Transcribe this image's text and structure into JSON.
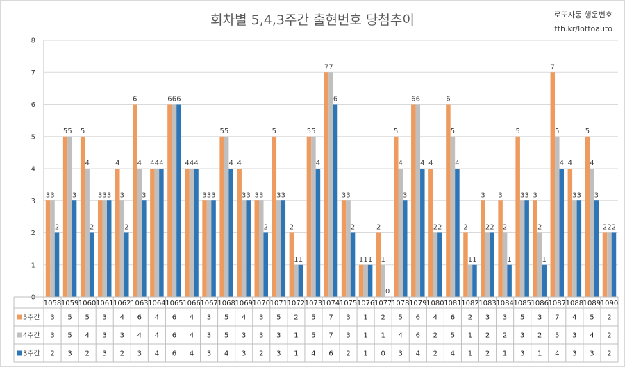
{
  "title": "회차별 5,4,3주간 출현번호 당첨추이",
  "watermark": {
    "line1": "로또자동 행운번호",
    "line2": "tth.kr/lottoauto"
  },
  "colors": {
    "s5": "#ED9B5E",
    "s4": "#BFBFBF",
    "s3": "#2E75B6",
    "grid": "#D9D9D9",
    "axis": "#BFBFBF"
  },
  "chart_data": {
    "type": "bar",
    "title": "회차별 5,4,3주간 출현번호 당첨추이",
    "ylim": [
      0,
      8
    ],
    "yticks": [
      0,
      1,
      2,
      3,
      4,
      5,
      6,
      7,
      8
    ],
    "grid": true,
    "legend": "data-table",
    "categories": [
      "1058",
      "1059",
      "1060",
      "1061",
      "1062",
      "1063",
      "1064",
      "1065",
      "1066",
      "1067",
      "1068",
      "1069",
      "1070",
      "1071",
      "1072",
      "1073",
      "1074",
      "1075",
      "1076",
      "1077",
      "1078",
      "1079",
      "1080",
      "1081",
      "1082",
      "1083",
      "1084",
      "1085",
      "1086",
      "1087",
      "1088",
      "1089",
      "1090"
    ],
    "series": [
      {
        "name": "5주간",
        "values": [
          3,
          5,
          5,
          3,
          4,
          6,
          4,
          6,
          4,
          3,
          5,
          4,
          3,
          5,
          2,
          5,
          7,
          3,
          1,
          2,
          5,
          6,
          4,
          6,
          2,
          3,
          3,
          5,
          3,
          7,
          4,
          5,
          2
        ]
      },
      {
        "name": "4주간",
        "values": [
          3,
          5,
          4,
          3,
          3,
          4,
          4,
          6,
          4,
          3,
          5,
          3,
          3,
          3,
          1,
          5,
          7,
          3,
          1,
          1,
          4,
          6,
          2,
          5,
          1,
          2,
          2,
          3,
          2,
          5,
          3,
          4,
          2
        ]
      },
      {
        "name": "3주간",
        "values": [
          2,
          3,
          2,
          3,
          2,
          3,
          4,
          6,
          4,
          3,
          4,
          3,
          2,
          3,
          1,
          4,
          6,
          2,
          1,
          0,
          3,
          4,
          2,
          4,
          1,
          2,
          1,
          3,
          1,
          4,
          3,
          3,
          2
        ]
      }
    ]
  }
}
